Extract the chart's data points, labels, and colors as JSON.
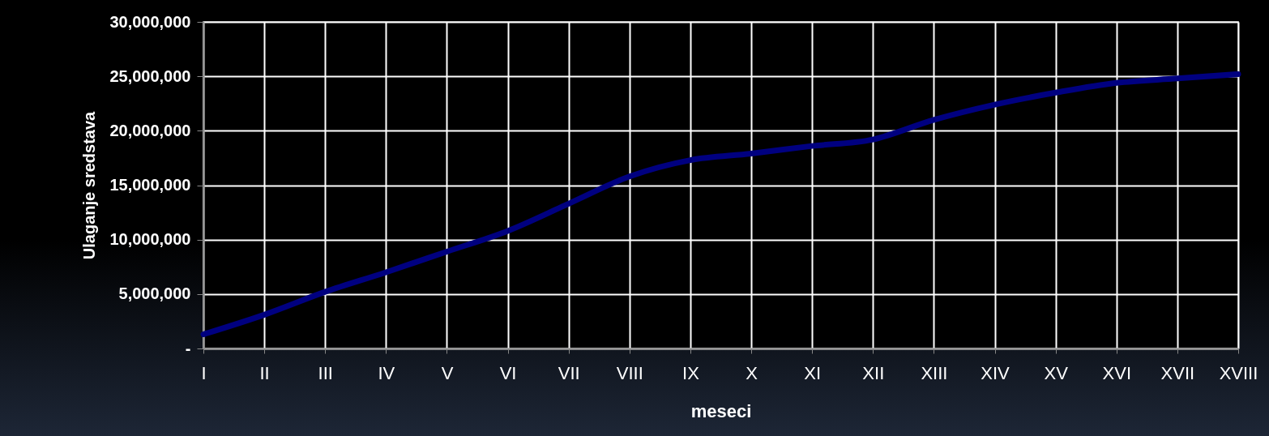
{
  "chart_data": {
    "type": "line",
    "xlabel": "meseci",
    "ylabel": "Ulaganje sredstava",
    "categories": [
      "I",
      "II",
      "III",
      "IV",
      "V",
      "VI",
      "VII",
      "VIII",
      "IX",
      "X",
      "XI",
      "XII",
      "XIII",
      "XIV",
      "XV",
      "XVI",
      "XVII",
      "XVIII"
    ],
    "series": [
      {
        "color": "#000080",
        "values": [
          1300000,
          3100000,
          5200000,
          7000000,
          8900000,
          10800000,
          13300000,
          15800000,
          17300000,
          17900000,
          18600000,
          19200000,
          21000000,
          22400000,
          23500000,
          24400000,
          24800000,
          25200000
        ]
      }
    ],
    "ylim": [
      0,
      30000000
    ],
    "yticks": [
      {
        "value": 0,
        "label": "-"
      },
      {
        "value": 5000000,
        "label": "5,000,000"
      },
      {
        "value": 10000000,
        "label": "10,000,000"
      },
      {
        "value": 15000000,
        "label": "15,000,000"
      },
      {
        "value": 20000000,
        "label": "20,000,000"
      },
      {
        "value": 25000000,
        "label": "25,000,000"
      },
      {
        "value": 30000000,
        "label": "30,000,000"
      }
    ],
    "grid": true,
    "marker": "none",
    "line_style": "solid"
  }
}
